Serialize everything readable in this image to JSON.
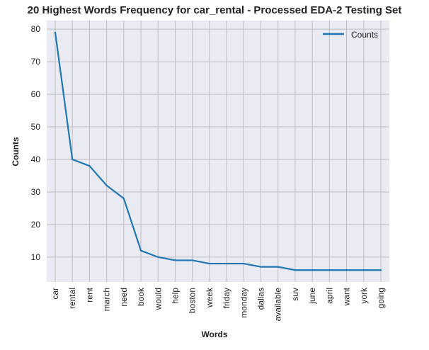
{
  "chart_data": {
    "type": "line",
    "title": "20 Highest Words Frequency for car_rental - Processed EDA-2 Testing Set",
    "xlabel": "Words",
    "ylabel": "Counts",
    "categories": [
      "car",
      "rental",
      "rent",
      "march",
      "need",
      "book",
      "would",
      "help",
      "boston",
      "week",
      "friday",
      "monday",
      "dallas",
      "available",
      "suv",
      "june",
      "april",
      "want",
      "york",
      "going"
    ],
    "series": [
      {
        "name": "Counts",
        "values": [
          79,
          40,
          38,
          32,
          28,
          12,
          10,
          9,
          9,
          8,
          8,
          8,
          7,
          7,
          6,
          6,
          6,
          6,
          6,
          6
        ]
      }
    ],
    "ylim": [
      2.35,
      82.65
    ],
    "yticks": [
      10,
      20,
      30,
      40,
      50,
      60,
      70,
      80
    ],
    "ytick_labels": [
      "10",
      "20",
      "30",
      "40",
      "50",
      "60",
      "70",
      "80"
    ],
    "grid": true,
    "legend_position": "upper right",
    "colors": {
      "background": "#eaeaf2",
      "grid": "#bdbdc2",
      "line": "#1f77b4"
    }
  }
}
